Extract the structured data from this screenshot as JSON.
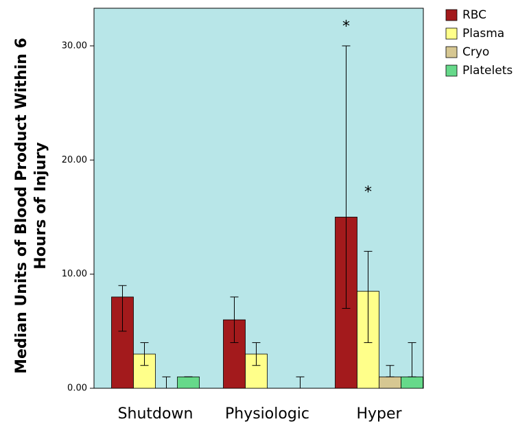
{
  "chart_data": {
    "type": "bar",
    "ylabel": [
      "Median Units of Blood Product Within 6",
      "Hours of Injury"
    ],
    "categories": [
      "Shutdown",
      "Physiologic",
      "Hyper"
    ],
    "series": [
      {
        "name": "RBC",
        "color": "#a31a1c",
        "values": [
          8,
          6,
          15
        ],
        "error_low": [
          5,
          4,
          7
        ],
        "error_high": [
          9,
          8,
          30
        ],
        "outliers": [
          null,
          null,
          32
        ],
        "outlier_label": "*"
      },
      {
        "name": "Plasma",
        "color": "#ffff8a",
        "values": [
          3,
          3,
          8.5
        ],
        "error_low": [
          2,
          2,
          4
        ],
        "error_high": [
          4,
          4,
          12
        ],
        "outliers": [
          null,
          null,
          17.5
        ],
        "outlier_label": "*"
      },
      {
        "name": "Cryo",
        "color": "#d6c792",
        "values": [
          0,
          0,
          1
        ],
        "error_low": [
          0,
          0,
          1
        ],
        "error_high": [
          1,
          0,
          2
        ]
      },
      {
        "name": "Platelets",
        "color": "#66d98a",
        "values": [
          1,
          0,
          1
        ],
        "error_low": [
          1,
          0,
          1
        ],
        "error_high": [
          1,
          1,
          4
        ]
      }
    ],
    "ylim": [
      0,
      33.3
    ],
    "yticks": [
      {
        "value": 0,
        "label": "0.00"
      },
      {
        "value": 10,
        "label": "10.00"
      },
      {
        "value": 20,
        "label": "20.00"
      },
      {
        "value": 30,
        "label": "30.00"
      }
    ],
    "background": "#b8e6e8",
    "legend": "right"
  }
}
